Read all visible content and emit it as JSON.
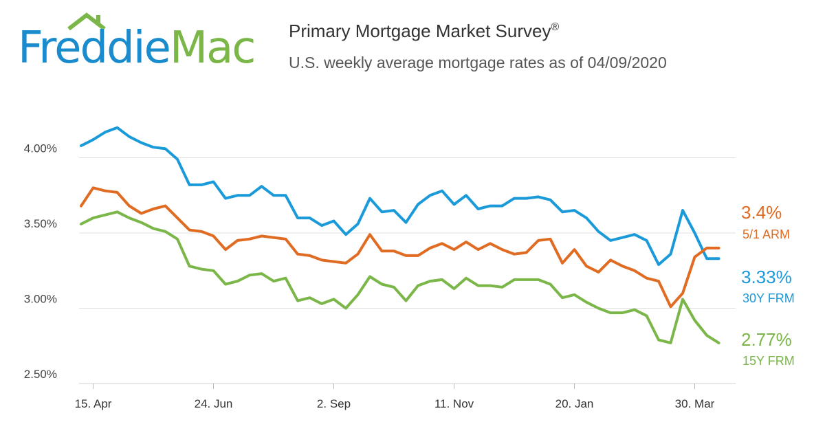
{
  "logo": {
    "part1": "Freddie",
    "part2": "Mac",
    "colors": {
      "freddie": "#1a8ccd",
      "mac": "#7ab648"
    }
  },
  "header": {
    "title": "Primary Mortgage Market Survey",
    "title_mark": "®",
    "subtitle": "U.S. weekly average mortgage rates as of 04/09/2020"
  },
  "chart_data": {
    "type": "line",
    "title": "Primary Mortgage Market Survey®",
    "subtitle": "U.S. weekly average mortgage rates as of 04/09/2020",
    "xlabel": "",
    "ylabel": "",
    "ylim": [
      2.5,
      4.5
    ],
    "yticks": [
      {
        "value": 2.5,
        "label": "2.50%"
      },
      {
        "value": 3.0,
        "label": "3.00%"
      },
      {
        "value": 3.5,
        "label": "3.50%"
      },
      {
        "value": 4.0,
        "label": "4.00%"
      }
    ],
    "xticks": [
      {
        "index": 1,
        "label": "15. Apr"
      },
      {
        "index": 11,
        "label": "24. Jun"
      },
      {
        "index": 21,
        "label": "2. Sep"
      },
      {
        "index": 31,
        "label": "11. Nov"
      },
      {
        "index": 41,
        "label": "20. Jan"
      },
      {
        "index": 51,
        "label": "30. Mar"
      }
    ],
    "grid": true,
    "legend": "end-of-line labels",
    "series": [
      {
        "name": "30Y FRM",
        "key": "frm30",
        "color": "#1a9ad9",
        "end_value": "3.33%",
        "values": [
          4.08,
          4.12,
          4.17,
          4.2,
          4.14,
          4.1,
          4.07,
          4.06,
          3.99,
          3.82,
          3.82,
          3.84,
          3.73,
          3.75,
          3.75,
          3.81,
          3.75,
          3.75,
          3.6,
          3.6,
          3.55,
          3.58,
          3.49,
          3.56,
          3.73,
          3.64,
          3.65,
          3.57,
          3.69,
          3.75,
          3.78,
          3.69,
          3.75,
          3.66,
          3.68,
          3.68,
          3.73,
          3.73,
          3.74,
          3.72,
          3.64,
          3.65,
          3.6,
          3.51,
          3.45,
          3.47,
          3.49,
          3.45,
          3.29,
          3.36,
          3.65,
          3.5,
          3.33,
          3.33
        ]
      },
      {
        "name": "5/1 ARM",
        "key": "arm51",
        "color": "#e06b23",
        "end_value": "3.4%",
        "values": [
          3.68,
          3.8,
          3.78,
          3.77,
          3.68,
          3.63,
          3.66,
          3.68,
          3.6,
          3.52,
          3.51,
          3.48,
          3.39,
          3.45,
          3.46,
          3.48,
          3.47,
          3.46,
          3.36,
          3.35,
          3.32,
          3.31,
          3.3,
          3.36,
          3.49,
          3.38,
          3.38,
          3.35,
          3.35,
          3.4,
          3.43,
          3.39,
          3.44,
          3.39,
          3.43,
          3.39,
          3.36,
          3.37,
          3.45,
          3.46,
          3.3,
          3.39,
          3.28,
          3.24,
          3.32,
          3.28,
          3.25,
          3.2,
          3.18,
          3.01,
          3.1,
          3.34,
          3.4,
          3.4
        ]
      },
      {
        "name": "15Y FRM",
        "key": "frm15",
        "color": "#7ab648",
        "end_value": "2.77%",
        "values": [
          3.56,
          3.6,
          3.62,
          3.64,
          3.6,
          3.57,
          3.53,
          3.51,
          3.46,
          3.28,
          3.26,
          3.25,
          3.16,
          3.18,
          3.22,
          3.23,
          3.18,
          3.2,
          3.05,
          3.07,
          3.03,
          3.06,
          3.0,
          3.09,
          3.21,
          3.16,
          3.14,
          3.05,
          3.15,
          3.18,
          3.19,
          3.13,
          3.2,
          3.15,
          3.15,
          3.14,
          3.19,
          3.19,
          3.19,
          3.16,
          3.07,
          3.09,
          3.04,
          3.0,
          2.97,
          2.97,
          2.99,
          2.95,
          2.79,
          2.77,
          3.06,
          2.92,
          2.82,
          2.77
        ]
      }
    ]
  }
}
